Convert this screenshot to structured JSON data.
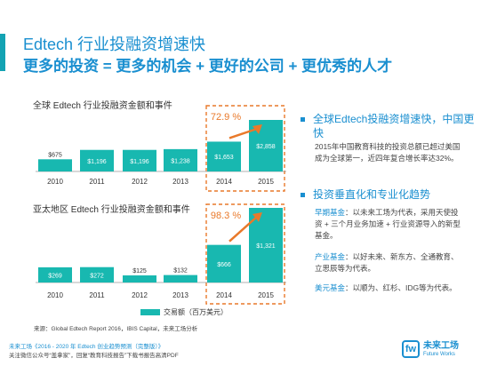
{
  "header": {
    "title": "Edtech 行业投融资增速快",
    "subtitle": "更多的投资 = 更多的机会 + 更好的公司 + 更优秀的人才"
  },
  "chart_data": [
    {
      "type": "bar",
      "title": "全球 Edtech 行业投融资金额和事件",
      "categories": [
        "2010",
        "2011",
        "2012",
        "2013",
        "2014",
        "2015"
      ],
      "values": [
        675,
        1196,
        1196,
        1238,
        1653,
        2858
      ],
      "value_labels": [
        "$675",
        "$1,196",
        "$1,196",
        "$1,238",
        "$1,653",
        "$2,858"
      ],
      "highlight_categories": [
        "2014",
        "2015"
      ],
      "growth_annotation": "72.9 %",
      "color": "#18b8b0"
    },
    {
      "type": "bar",
      "title": "亚太地区 Edtech 行业投融资金额和事件",
      "categories": [
        "2010",
        "2011",
        "2012",
        "2013",
        "2014",
        "2015"
      ],
      "values": [
        269,
        272,
        125,
        132,
        666,
        1321
      ],
      "value_labels": [
        "$269",
        "$272",
        "$125",
        "$132",
        "$666",
        "$1,321"
      ],
      "highlight_categories": [
        "2014",
        "2015"
      ],
      "growth_annotation": "98.3 %",
      "color": "#18b8b0"
    }
  ],
  "legend": {
    "label": "交易额（百万美元）",
    "color": "#18b8b0"
  },
  "source": "来源：Global Edtech Report 2016，IBIS Capital，未来工场分析",
  "right_panel": {
    "point1_title": "全球Edtech投融资增速快，中国更快",
    "point1_text": "2015年中国教育科技的投资总额已超过美国成为全球第一，近四年复合增长率达32%。",
    "point2_title": "投资垂直化和专业化趋势",
    "early_label": "早期基金",
    "early_text": "：以未来工场为代表，采用天使投资 + 三个月业务加速 + 行业资源导入的新型基金。",
    "industry_label": "产业基金",
    "industry_text": "：以好未来、新东方、全通教育、立思辰等为代表。",
    "usd_label": "美元基金",
    "usd_text": "：以顺为、红杉、IDG等为代表。"
  },
  "footer": {
    "line1": "未来工场《2016 - 2020 年 Edtech 创业趋势预测（完整版）》",
    "line2": "关注微信公众号“盖拿家”，回复“教育科技报告”下载书报告高清PDF"
  },
  "logo": {
    "name": "未来工场",
    "sub": "Future Works"
  },
  "colors": {
    "accent": "#1a8fd0",
    "bar": "#18b8b0",
    "highlight": "#e9792a"
  }
}
